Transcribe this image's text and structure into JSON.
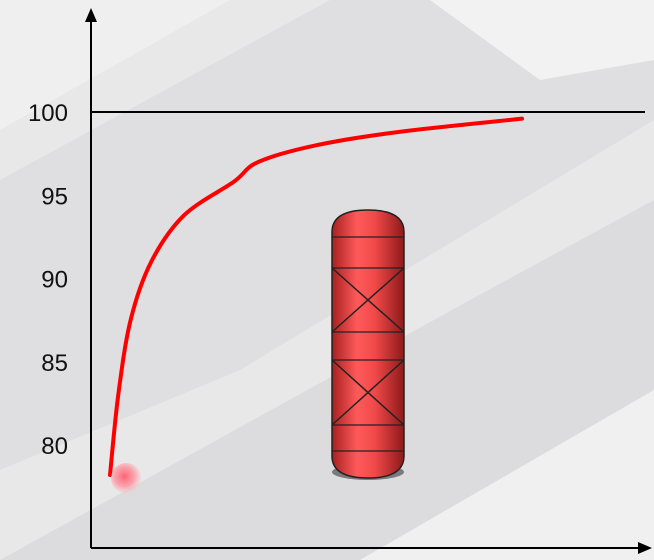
{
  "chart_data": {
    "type": "line",
    "title": "",
    "xlabel": "",
    "ylabel": "",
    "ylim": [
      75,
      105
    ],
    "yticks": [
      80,
      85,
      90,
      95,
      100
    ],
    "reference_line": {
      "y": 100,
      "color": "#000000"
    },
    "series": [
      {
        "color": "#ff0000",
        "points": [
          {
            "x": 0.0,
            "y": 78.2
          },
          {
            "x": 0.02,
            "y": 83.0
          },
          {
            "x": 0.05,
            "y": 87.5
          },
          {
            "x": 0.1,
            "y": 91.0
          },
          {
            "x": 0.18,
            "y": 93.8
          },
          {
            "x": 0.3,
            "y": 95.8
          },
          {
            "x": 0.36,
            "y": 97.0
          },
          {
            "x": 0.5,
            "y": 98.0
          },
          {
            "x": 0.7,
            "y": 98.8
          },
          {
            "x": 1.0,
            "y": 99.6
          }
        ]
      }
    ],
    "start_marker_color": "#ff7f8c",
    "column_illustration": {
      "fill_color": "#e84a4a",
      "stroke_color": "#222222",
      "packed_sections": 2
    },
    "grid": false,
    "legend": "none"
  }
}
